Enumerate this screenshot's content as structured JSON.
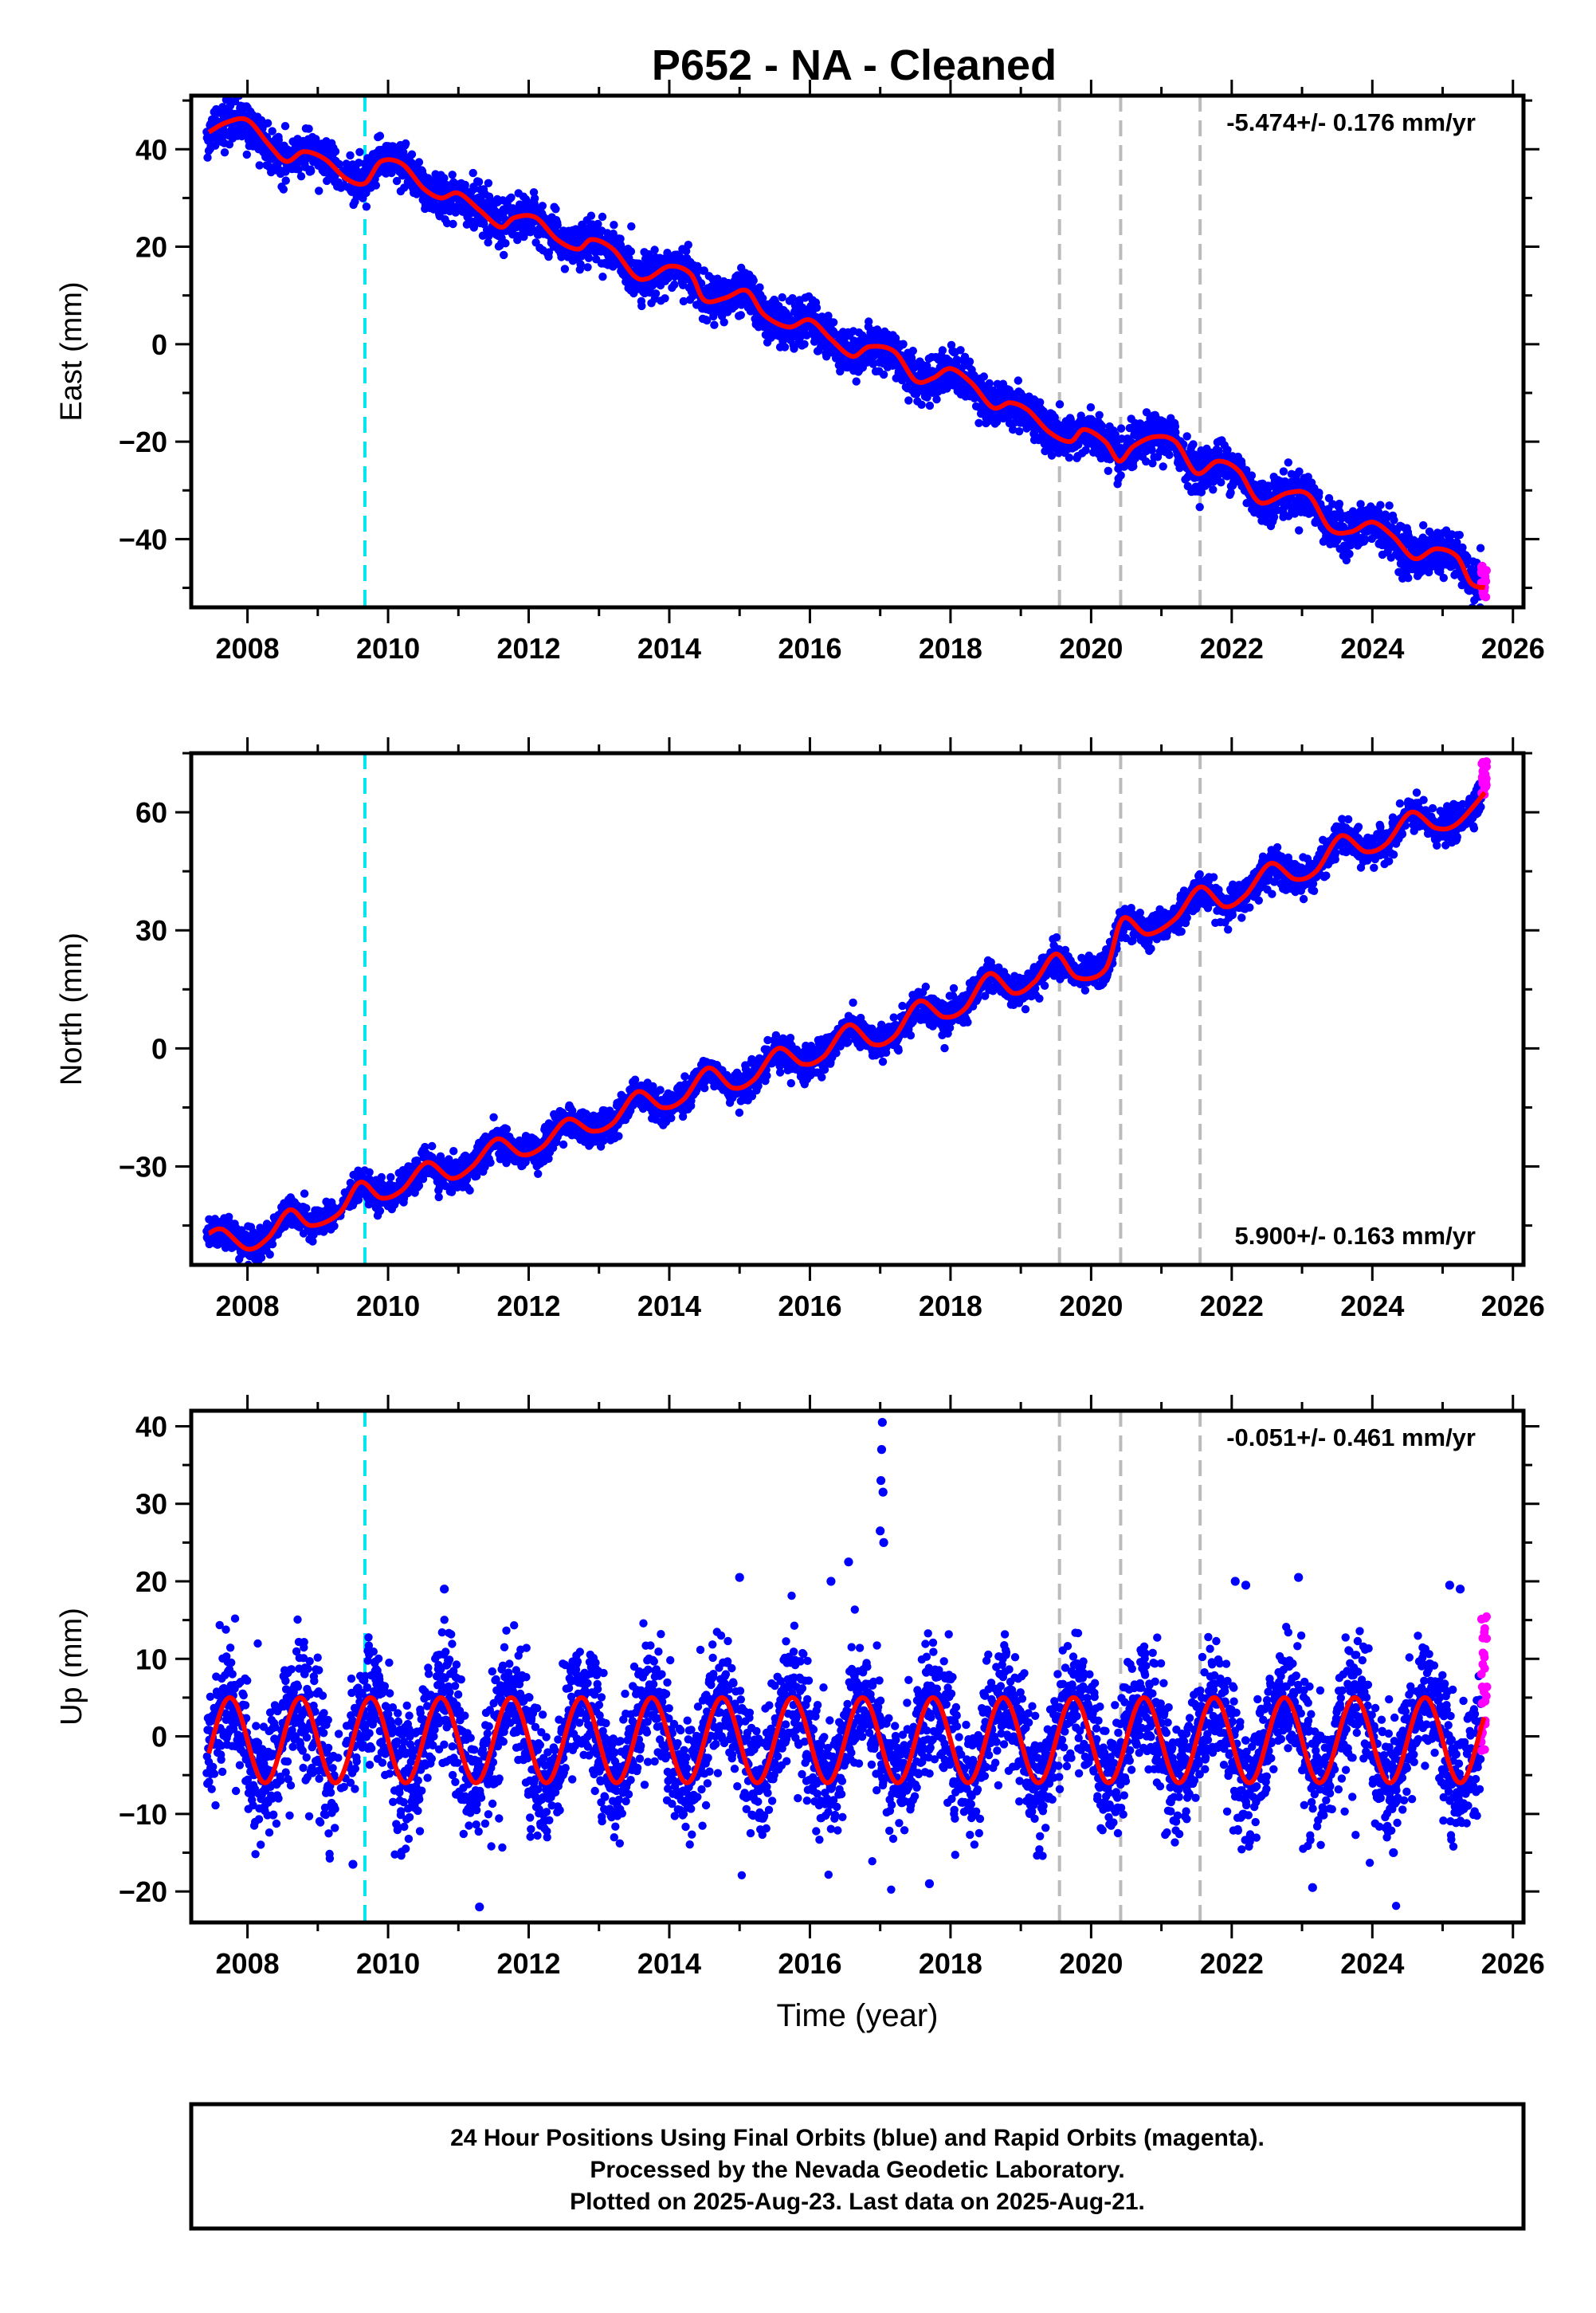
{
  "title": "P652  - NA - Cleaned",
  "footer": {
    "lines": [
      "24 Hour Positions Using Final Orbits (blue) and Rapid Orbits (magenta).",
      "Processed by the Nevada Geodetic Laboratory.",
      "Plotted on 2025-Aug-23. Last data on 2025-Aug-21."
    ]
  },
  "colors": {
    "final_orbits": "#0000ff",
    "rapid_orbits": "#ff00ff",
    "model_fit": "#ff0000",
    "offset_cyan": "#00e5ee",
    "offset_gray": "#bbbbbb"
  },
  "chart_data": [
    {
      "type": "scatter",
      "ylabel": "East (mm)",
      "xlabel": "",
      "xlim": [
        2007.2,
        2026.15
      ],
      "ylim": [
        -54,
        51
      ],
      "xticks": [
        2008,
        2010,
        2012,
        2014,
        2016,
        2018,
        2020,
        2022,
        2024,
        2026
      ],
      "yticks": [
        -40,
        -20,
        0,
        20,
        40
      ],
      "grid": false,
      "rate_label": "-5.474+/- 0.176 mm/yr",
      "rate_label_position": "top-right",
      "offset_lines": {
        "cyan": [
          2009.67
        ],
        "gray": [
          2019.55,
          2020.42,
          2021.55
        ]
      },
      "fit_samples": {
        "x": [
          2007.45,
          2007.7,
          2008.0,
          2008.3,
          2008.55,
          2008.8,
          2009.1,
          2009.4,
          2009.67,
          2009.9,
          2010.2,
          2010.5,
          2010.75,
          2011.0,
          2011.3,
          2011.6,
          2011.8,
          2012.1,
          2012.4,
          2012.7,
          2012.9,
          2013.2,
          2013.5,
          2013.7,
          2014.0,
          2014.3,
          2014.5,
          2014.8,
          2015.1,
          2015.35,
          2015.7,
          2016.0,
          2016.3,
          2016.6,
          2016.85,
          2017.2,
          2017.5,
          2017.75,
          2018.0,
          2018.3,
          2018.6,
          2018.85,
          2019.1,
          2019.4,
          2019.7,
          2019.9,
          2020.2,
          2020.4,
          2020.6,
          2020.9,
          2021.2,
          2021.5,
          2021.8,
          2022.1,
          2022.4,
          2022.8,
          2023.1,
          2023.4,
          2023.7,
          2024.0,
          2024.3,
          2024.6,
          2024.9,
          2025.2,
          2025.4,
          2025.6
        ],
        "y": [
          43.5,
          45.5,
          46,
          41,
          37.5,
          39.5,
          38,
          34,
          33,
          37.5,
          37,
          32,
          30,
          31,
          27.5,
          24,
          26,
          26,
          21.5,
          19.5,
          21.5,
          19.5,
          14,
          13.5,
          16,
          14.5,
          9,
          9.5,
          11,
          6,
          3.5,
          5,
          1,
          -2.5,
          -0.5,
          -1.5,
          -7.5,
          -7,
          -5,
          -8,
          -13,
          -12,
          -13.5,
          -18,
          -20,
          -17.5,
          -20,
          -24,
          -21,
          -19,
          -20,
          -26.5,
          -24,
          -26,
          -32.5,
          -30.5,
          -31,
          -38,
          -38.5,
          -36.5,
          -39.5,
          -44,
          -42,
          -43.5,
          -49,
          -50
        ]
      },
      "data_trend": {
        "y_2008": 43,
        "y_2025_5": -47.2,
        "seasonal_amplitude": 2.8,
        "scatter": 2.2
      },
      "rapid_orbit_points": {
        "x_range": [
          2025.55,
          2025.63
        ],
        "y_range": [
          -52,
          -45
        ]
      }
    },
    {
      "type": "scatter",
      "ylabel": "North (mm)",
      "xlabel": "",
      "xlim": [
        2007.2,
        2026.15
      ],
      "ylim": [
        -55,
        75
      ],
      "xticks": [
        2008,
        2010,
        2012,
        2014,
        2016,
        2018,
        2020,
        2022,
        2024,
        2026
      ],
      "yticks": [
        -30,
        0,
        30,
        60
      ],
      "grid": false,
      "rate_label": "5.900+/- 0.163 mm/yr",
      "rate_label_position": "bottom-right",
      "offset_lines": {
        "cyan": [
          2009.67
        ],
        "gray": [
          2019.55,
          2020.42,
          2021.55
        ]
      },
      "fit_samples": {
        "x": [
          2007.45,
          2007.65,
          2008.0,
          2008.3,
          2008.6,
          2008.9,
          2009.3,
          2009.6,
          2009.9,
          2010.2,
          2010.55,
          2010.9,
          2011.2,
          2011.55,
          2011.9,
          2012.2,
          2012.55,
          2012.9,
          2013.2,
          2013.55,
          2013.9,
          2014.2,
          2014.55,
          2014.9,
          2015.2,
          2015.55,
          2015.9,
          2016.2,
          2016.55,
          2016.9,
          2017.2,
          2017.55,
          2017.9,
          2018.2,
          2018.55,
          2018.9,
          2019.2,
          2019.5,
          2019.8,
          2020.2,
          2020.45,
          2020.8,
          2021.2,
          2021.55,
          2021.9,
          2022.2,
          2022.55,
          2022.9,
          2023.2,
          2023.55,
          2023.9,
          2024.2,
          2024.55,
          2024.9,
          2025.2,
          2025.6
        ],
        "y": [
          -47,
          -46,
          -51,
          -48,
          -41,
          -45,
          -42,
          -34,
          -38,
          -36,
          -29,
          -33,
          -30,
          -23,
          -27,
          -25,
          -18,
          -21,
          -19,
          -11,
          -15,
          -13,
          -5,
          -10,
          -8,
          0,
          -4,
          -2,
          6,
          1,
          3,
          12,
          8,
          10,
          19,
          14,
          17,
          24,
          18,
          20,
          33,
          29,
          33,
          41,
          36,
          39,
          47,
          43,
          45,
          54,
          50,
          52,
          60,
          56,
          57,
          65
        ]
      },
      "data_trend": {
        "y_2008": -48,
        "y_2025_5": 63.5,
        "seasonal_amplitude": 2.6,
        "scatter": 2.0
      },
      "rapid_orbit_points": {
        "x_range": [
          2025.55,
          2025.63
        ],
        "y_range": [
          64,
          73
        ]
      }
    },
    {
      "type": "scatter",
      "ylabel": "Up (mm)",
      "xlabel": "Time (year)",
      "xlim": [
        2007.2,
        2026.15
      ],
      "ylim": [
        -24,
        42
      ],
      "xticks": [
        2008,
        2010,
        2012,
        2014,
        2016,
        2018,
        2020,
        2022,
        2024,
        2026
      ],
      "yticks": [
        -20,
        -10,
        0,
        10,
        20,
        30,
        40
      ],
      "grid": false,
      "rate_label": "-0.051+/- 0.461 mm/yr",
      "rate_label_position": "top-right",
      "offset_lines": {
        "cyan": [
          2009.67
        ],
        "gray": [
          2019.55,
          2020.42,
          2021.55
        ]
      },
      "fit_model": {
        "type": "sinusoid",
        "mean": -0.5,
        "amplitude": 5.5,
        "phase_peak_year_fraction": 0.75
      },
      "data_trend": {
        "scatter": 3.8
      },
      "outliers": [
        {
          "x": 2017.03,
          "y": 40.5
        },
        {
          "x": 2017.02,
          "y": 37
        },
        {
          "x": 2017.01,
          "y": 33
        },
        {
          "x": 2017.04,
          "y": 31.5
        },
        {
          "x": 2017.0,
          "y": 26.5
        },
        {
          "x": 2017.05,
          "y": 25
        },
        {
          "x": 2016.55,
          "y": 22.5
        },
        {
          "x": 2016.3,
          "y": 20
        },
        {
          "x": 2015.0,
          "y": 20.5
        },
        {
          "x": 2010.8,
          "y": 19
        },
        {
          "x": 2022.05,
          "y": 20
        },
        {
          "x": 2022.2,
          "y": 19.5
        },
        {
          "x": 2022.95,
          "y": 20.5
        },
        {
          "x": 2025.1,
          "y": 19.5
        },
        {
          "x": 2025.25,
          "y": 19
        },
        {
          "x": 2011.3,
          "y": -22
        },
        {
          "x": 2017.7,
          "y": -19
        },
        {
          "x": 2023.15,
          "y": -19.5
        },
        {
          "x": 2009.5,
          "y": -16.5
        },
        {
          "x": 2024.3,
          "y": -15
        }
      ],
      "rapid_orbit_points": {
        "x_range": [
          2025.55,
          2025.63
        ],
        "y_range": [
          -2,
          15.5
        ]
      }
    }
  ]
}
